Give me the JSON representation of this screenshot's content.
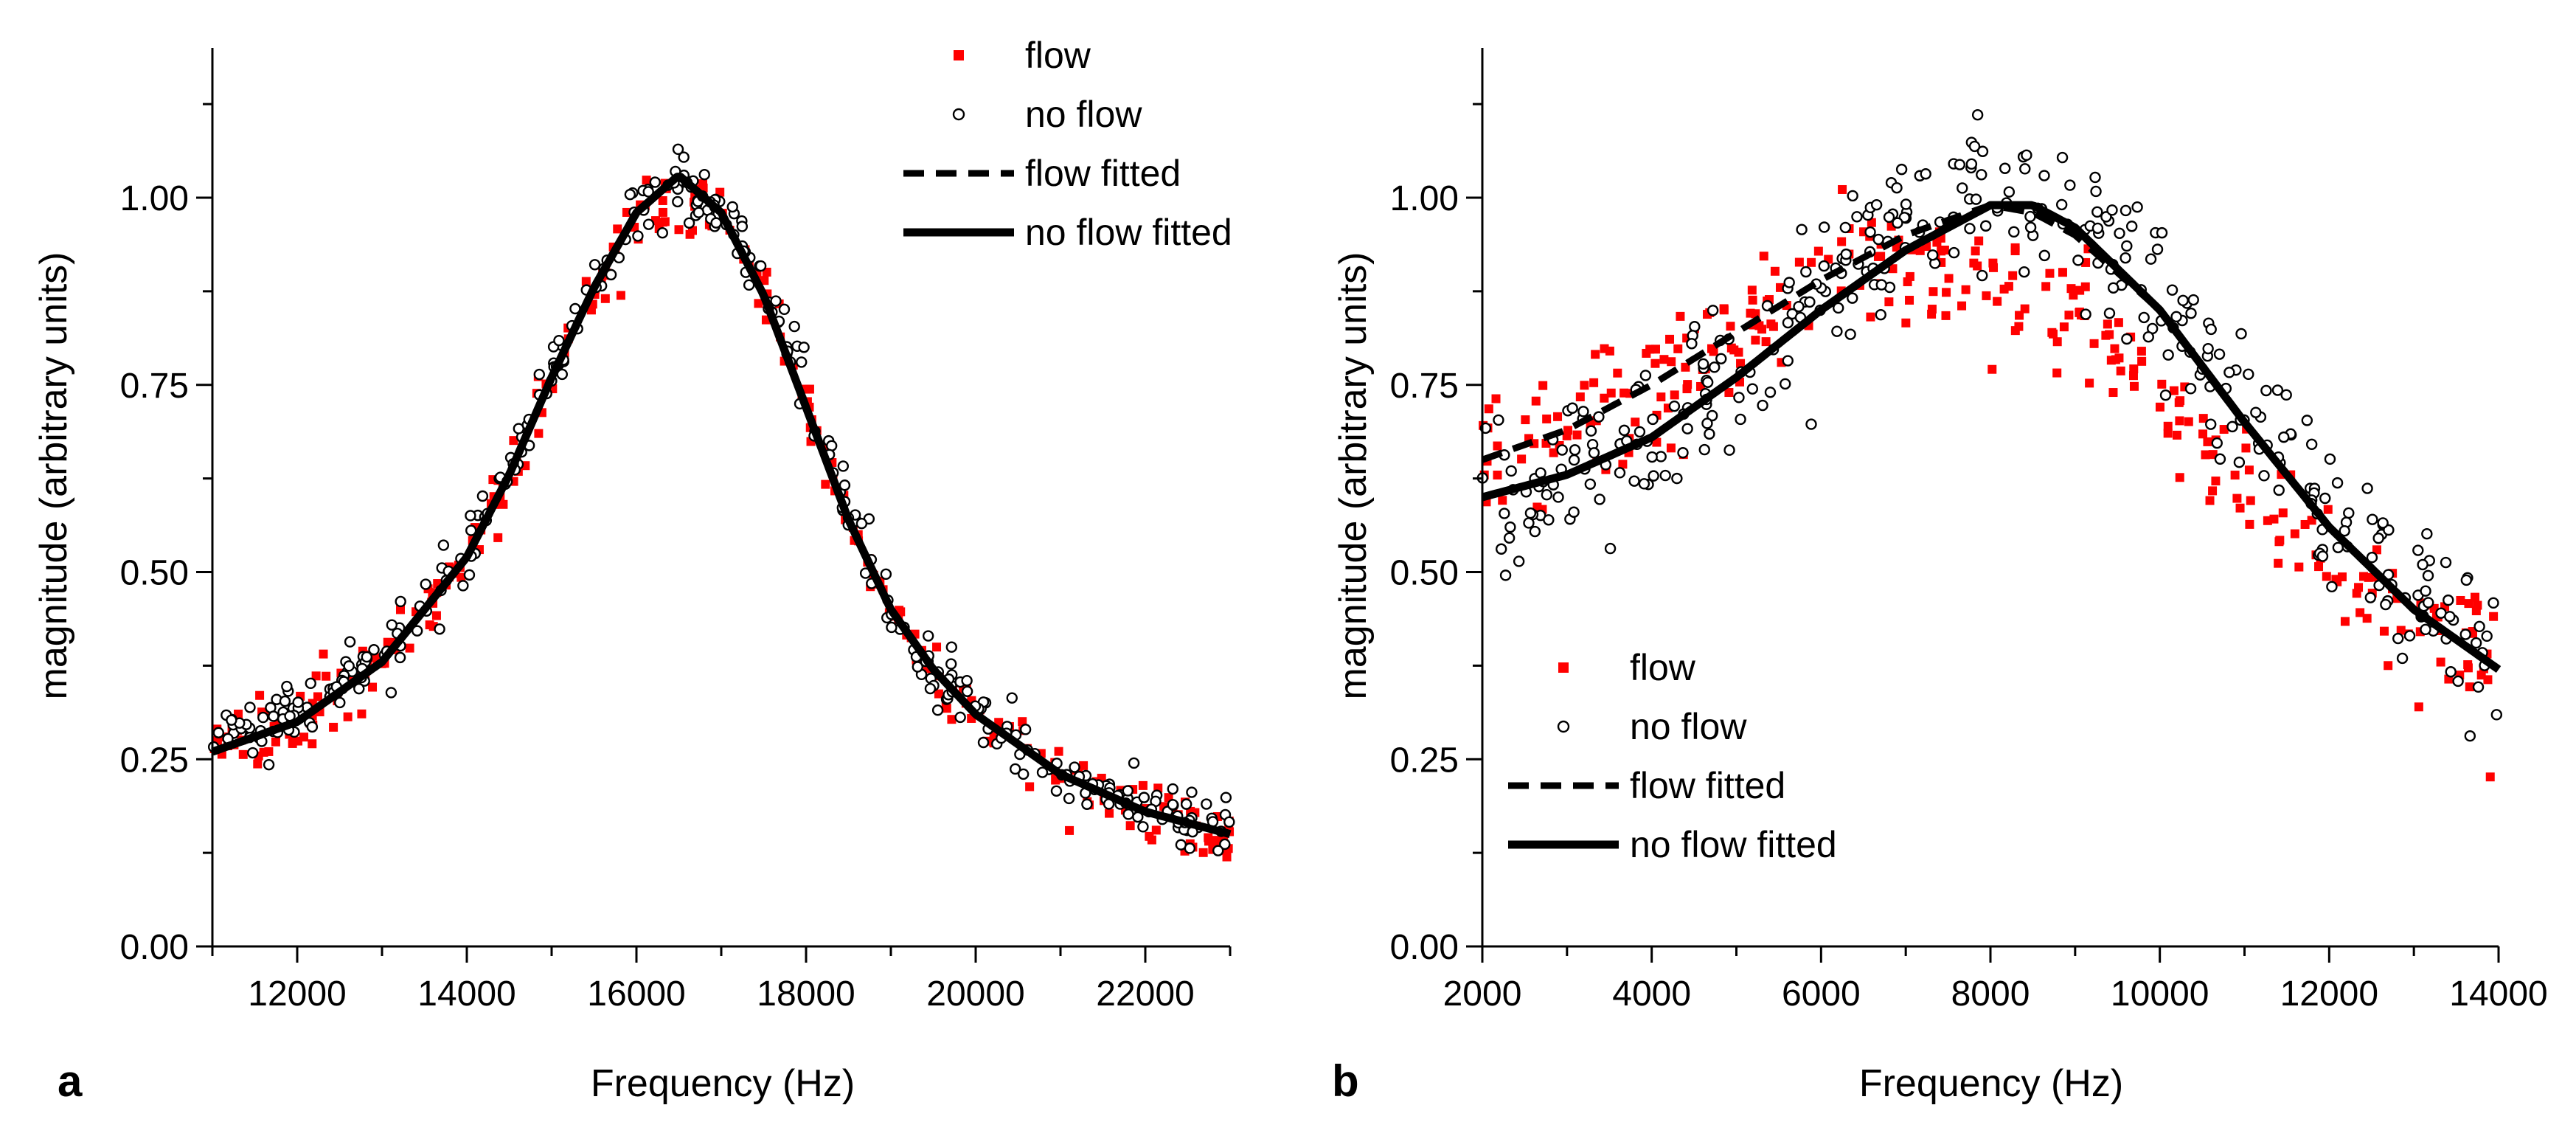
{
  "chart_data": [
    {
      "type": "scatter",
      "panel_label": "a",
      "xlabel": "Frequency (Hz)",
      "ylabel": "magnitude (arbitrary units)",
      "xlim": [
        11000,
        23000
      ],
      "ylim": [
        0.0,
        1.2
      ],
      "x_ticks": [
        12000,
        14000,
        16000,
        18000,
        20000,
        22000
      ],
      "y_ticks": [
        0.0,
        0.25,
        0.5,
        0.75,
        1.0
      ],
      "y_tick_labels": [
        "0.00",
        "0.25",
        "0.50",
        "0.75",
        "1.00"
      ],
      "legend_position": "top-right",
      "legend": [
        {
          "label": "flow",
          "style": "red-square"
        },
        {
          "label": "no flow",
          "style": "open-circle"
        },
        {
          "label": "flow fitted",
          "style": "dashed-line"
        },
        {
          "label": "no flow fitted",
          "style": "solid-line"
        }
      ],
      "series": [
        {
          "name": "flow",
          "kind": "scatter",
          "color": "#ff0000",
          "x_range": [
            11000,
            23000
          ],
          "n_points": 300,
          "noise": 0.02,
          "x": [
            11000,
            12000,
            13000,
            14000,
            14500,
            15000,
            15500,
            16000,
            16500,
            17000,
            17500,
            18000,
            18500,
            19000,
            19500,
            20000,
            21000,
            22000,
            23000
          ],
          "y": [
            0.27,
            0.3,
            0.38,
            0.52,
            0.63,
            0.76,
            0.88,
            0.97,
            1.0,
            0.97,
            0.88,
            0.73,
            0.57,
            0.45,
            0.37,
            0.31,
            0.23,
            0.18,
            0.15
          ]
        },
        {
          "name": "no flow",
          "kind": "scatter",
          "color": "#000000",
          "x_range": [
            11000,
            23000
          ],
          "n_points": 360,
          "noise": 0.02,
          "x": [
            11000,
            12000,
            13000,
            14000,
            14500,
            15000,
            15500,
            16000,
            16500,
            17000,
            17500,
            18000,
            18500,
            19000,
            19500,
            20000,
            21000,
            22000,
            23000
          ],
          "y": [
            0.27,
            0.31,
            0.39,
            0.53,
            0.64,
            0.77,
            0.89,
            0.98,
            1.02,
            0.98,
            0.89,
            0.74,
            0.58,
            0.45,
            0.37,
            0.31,
            0.23,
            0.18,
            0.15
          ]
        },
        {
          "name": "flow fitted",
          "kind": "line",
          "dash": true,
          "x": [
            11000,
            12000,
            13000,
            14000,
            14500,
            15000,
            15500,
            16000,
            16500,
            17000,
            17500,
            18000,
            18500,
            19000,
            19500,
            20000,
            21000,
            22000,
            23000
          ],
          "y": [
            0.26,
            0.3,
            0.38,
            0.52,
            0.63,
            0.76,
            0.88,
            0.98,
            1.03,
            0.98,
            0.87,
            0.72,
            0.57,
            0.45,
            0.37,
            0.31,
            0.23,
            0.18,
            0.15
          ]
        },
        {
          "name": "no flow fitted",
          "kind": "line",
          "dash": false,
          "x": [
            11000,
            12000,
            13000,
            14000,
            14500,
            15000,
            15500,
            16000,
            16500,
            17000,
            17500,
            18000,
            18500,
            19000,
            19500,
            20000,
            21000,
            22000,
            23000
          ],
          "y": [
            0.26,
            0.3,
            0.38,
            0.52,
            0.63,
            0.76,
            0.88,
            0.98,
            1.03,
            0.98,
            0.87,
            0.72,
            0.57,
            0.45,
            0.37,
            0.31,
            0.23,
            0.18,
            0.15
          ]
        }
      ]
    },
    {
      "type": "scatter",
      "panel_label": "b",
      "xlabel": "Frequency (Hz)",
      "ylabel": "magnitude (arbitrary units)",
      "xlim": [
        2000,
        14000
      ],
      "ylim": [
        0.0,
        1.2
      ],
      "x_ticks": [
        2000,
        4000,
        6000,
        8000,
        10000,
        12000,
        14000
      ],
      "y_ticks": [
        0.0,
        0.25,
        0.5,
        0.75,
        1.0
      ],
      "y_tick_labels": [
        "0.00",
        "0.25",
        "0.50",
        "0.75",
        "1.00"
      ],
      "legend_position": "bottom-left",
      "legend": [
        {
          "label": "flow",
          "style": "red-square"
        },
        {
          "label": "no flow",
          "style": "open-circle"
        },
        {
          "label": "flow fitted",
          "style": "dashed-line"
        },
        {
          "label": "no flow fitted",
          "style": "solid-line"
        }
      ],
      "series": [
        {
          "name": "flow",
          "kind": "scatter",
          "color": "#ff0000",
          "x_range": [
            2000,
            14000
          ],
          "n_points": 300,
          "noise": 0.045,
          "x": [
            2000,
            3000,
            4000,
            5000,
            6000,
            7000,
            8000,
            8500,
            9000,
            10000,
            11000,
            12000,
            13000,
            14000
          ],
          "y": [
            0.65,
            0.69,
            0.75,
            0.82,
            0.89,
            0.93,
            0.92,
            0.88,
            0.84,
            0.74,
            0.62,
            0.52,
            0.44,
            0.38
          ]
        },
        {
          "name": "no flow",
          "kind": "scatter",
          "color": "#000000",
          "x_range": [
            2000,
            14000
          ],
          "n_points": 360,
          "noise": 0.05,
          "x": [
            2000,
            3000,
            4000,
            5000,
            6000,
            7000,
            8000,
            9000,
            10000,
            11000,
            12000,
            13000,
            14000
          ],
          "y": [
            0.58,
            0.61,
            0.68,
            0.77,
            0.88,
            0.98,
            1.01,
            0.98,
            0.88,
            0.72,
            0.58,
            0.47,
            0.37
          ]
        },
        {
          "name": "flow fitted",
          "kind": "line",
          "dash": true,
          "x": [
            2000,
            3000,
            4000,
            5000,
            6000,
            7000,
            8000,
            8500,
            9000,
            10000,
            11000,
            12000,
            13000,
            14000
          ],
          "y": [
            0.65,
            0.69,
            0.75,
            0.82,
            0.89,
            0.95,
            0.99,
            0.98,
            0.95,
            0.85,
            0.7,
            0.56,
            0.45,
            0.37
          ]
        },
        {
          "name": "no flow fitted",
          "kind": "line",
          "dash": false,
          "x": [
            2000,
            3000,
            4000,
            5000,
            6000,
            7000,
            8000,
            8500,
            9000,
            10000,
            11000,
            12000,
            13000,
            14000
          ],
          "y": [
            0.6,
            0.63,
            0.68,
            0.76,
            0.85,
            0.93,
            0.99,
            0.99,
            0.96,
            0.85,
            0.7,
            0.56,
            0.45,
            0.37
          ]
        }
      ]
    }
  ]
}
